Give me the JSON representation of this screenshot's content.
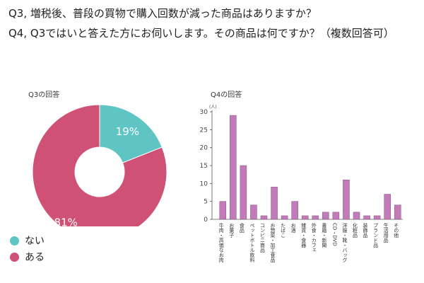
{
  "q3": "Q3, 増税後、普段の買物で購入回数が減った商品はありますか？",
  "q4": "Q4, Q3ではいと答えた方にお伺いします。その商品は何ですか？（複数回答可）",
  "colors": {
    "nai": "#5ec5c4",
    "aru": "#cf5176",
    "bar": "#c07bb8",
    "axis": "#555555"
  },
  "chart_data": [
    {
      "type": "pie",
      "title": "Q3の回答",
      "donut": true,
      "slices": [
        {
          "name": "ない",
          "value": 19,
          "label": "19%"
        },
        {
          "name": "ある",
          "value": 81,
          "label": "81%"
        }
      ],
      "legend": "bottom-left"
    },
    {
      "type": "bar",
      "title": "Q4の回答",
      "ylabel": "(人)",
      "ylim": [
        0,
        30
      ],
      "yticks": [
        0,
        5,
        10,
        15,
        20,
        25,
        30
      ],
      "categories": [
        "牛肉・高価なお肉",
        "お菓子",
        "食品",
        "ペットボトル飲料",
        "コンビニ商品",
        "お惣菜・加工食品",
        "たばこ",
        "お酒",
        "雑貨・食器",
        "外食・カフェ",
        "書籍・新聞",
        "CD・DVD",
        "洋服・靴・バッグ",
        "化粧品",
        "装飾品",
        "ブランド品",
        "生活用品",
        "その他"
      ],
      "values": [
        5,
        29,
        15,
        4,
        1,
        9,
        1,
        5,
        1,
        1,
        2,
        2,
        11,
        2,
        1,
        1,
        7,
        4
      ]
    }
  ]
}
